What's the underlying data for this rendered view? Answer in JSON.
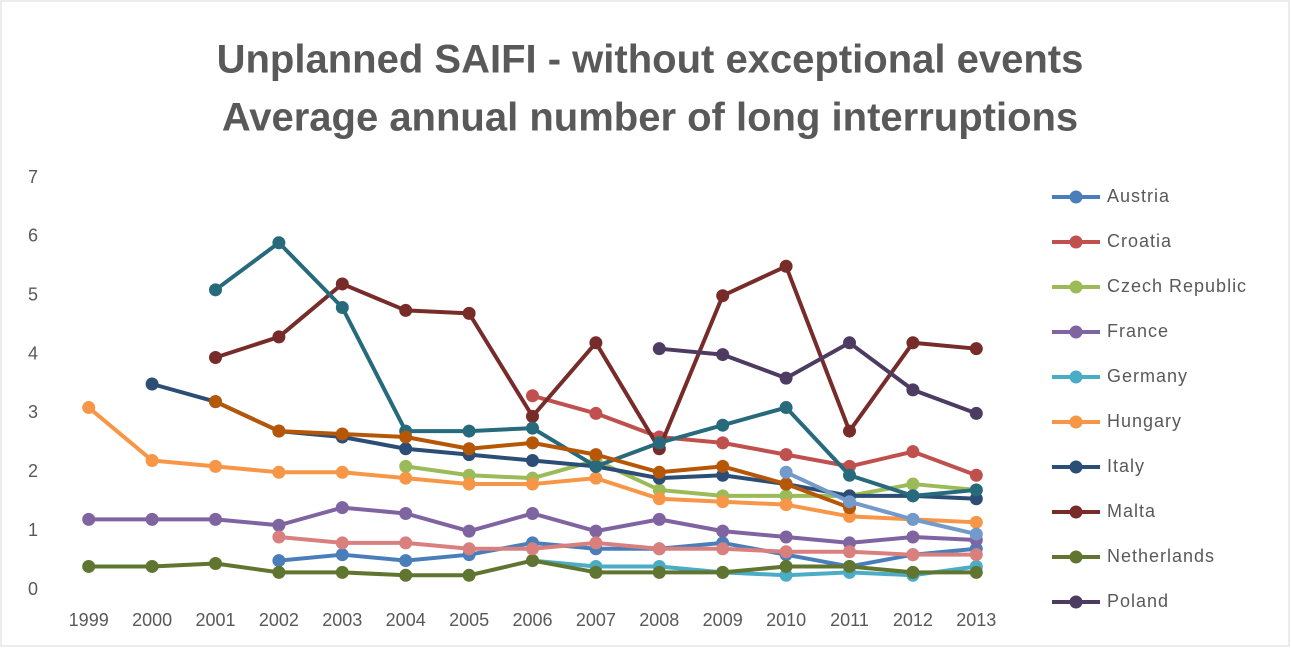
{
  "chart_data": {
    "type": "line",
    "title": "Unplanned SAIFI - without exceptional events",
    "subtitle": "Average annual number of long interruptions",
    "categories": [
      "1999",
      "2000",
      "2001",
      "2002",
      "2003",
      "2004",
      "2005",
      "2006",
      "2007",
      "2008",
      "2009",
      "2010",
      "2011",
      "2012",
      "2013"
    ],
    "ylim": [
      0,
      7
    ],
    "yticks": [
      0,
      1,
      2,
      3,
      4,
      5,
      6,
      7
    ],
    "grid": false,
    "legend": "right",
    "series": [
      {
        "name": "Austria",
        "color": "#4a7ebb",
        "values": [
          null,
          null,
          null,
          0.5,
          0.6,
          0.5,
          0.6,
          0.8,
          0.7,
          0.7,
          0.8,
          0.6,
          0.4,
          0.6,
          0.7
        ]
      },
      {
        "name": "Croatia",
        "color": "#c0504d",
        "values": [
          null,
          null,
          null,
          null,
          null,
          null,
          null,
          3.3,
          3.0,
          2.6,
          2.5,
          2.3,
          2.1,
          2.35,
          1.95
        ]
      },
      {
        "name": "Czech Republic",
        "color": "#9bbb59",
        "values": [
          null,
          null,
          null,
          null,
          null,
          2.1,
          1.95,
          1.9,
          2.2,
          1.7,
          1.6,
          1.6,
          1.6,
          1.8,
          1.7
        ]
      },
      {
        "name": "France",
        "color": "#8064a2",
        "values": [
          1.2,
          1.2,
          1.2,
          1.1,
          1.4,
          1.3,
          1.0,
          1.3,
          1.0,
          1.2,
          1.0,
          0.9,
          0.8,
          0.9,
          0.85
        ]
      },
      {
        "name": "Germany",
        "color": "#4bacc6",
        "values": [
          null,
          null,
          null,
          null,
          null,
          null,
          null,
          0.5,
          0.4,
          0.4,
          0.3,
          0.25,
          0.3,
          0.25,
          0.4
        ]
      },
      {
        "name": "Hungary",
        "color": "#f79646",
        "values": [
          3.1,
          2.2,
          2.1,
          2.0,
          2.0,
          1.9,
          1.8,
          1.8,
          1.9,
          1.55,
          1.5,
          1.45,
          1.25,
          1.2,
          1.15
        ]
      },
      {
        "name": "Italy",
        "color": "#2c4d75",
        "values": [
          null,
          3.5,
          3.2,
          2.7,
          2.6,
          2.4,
          2.3,
          2.2,
          2.1,
          1.9,
          1.95,
          1.8,
          1.6,
          1.6,
          1.55
        ]
      },
      {
        "name": "Malta",
        "color": "#772c2a",
        "values": [
          null,
          null,
          3.95,
          4.3,
          5.2,
          4.75,
          4.7,
          2.95,
          4.2,
          2.4,
          5.0,
          5.5,
          2.7,
          4.2,
          4.1
        ]
      },
      {
        "name": "Netherlands",
        "color": "#5f7530",
        "values": [
          0.4,
          0.4,
          0.45,
          0.3,
          0.3,
          0.25,
          0.25,
          0.5,
          0.3,
          0.3,
          0.3,
          0.4,
          0.4,
          0.3,
          0.3
        ]
      },
      {
        "name": "Poland",
        "color": "#4d3b62",
        "values": [
          null,
          null,
          null,
          null,
          null,
          null,
          null,
          null,
          null,
          4.1,
          4.0,
          3.6,
          4.2,
          3.4,
          3.0
        ]
      },
      {
        "color": "#276a7c",
        "values": [
          null,
          null,
          5.1,
          5.9,
          4.8,
          2.7,
          2.7,
          2.75,
          2.1,
          2.5,
          2.8,
          3.1,
          1.95,
          1.6,
          1.7
        ]
      },
      {
        "color": "#b65708",
        "values": [
          null,
          null,
          3.2,
          2.7,
          2.65,
          2.6,
          2.4,
          2.5,
          2.3,
          2.0,
          2.1,
          1.8,
          1.4,
          null,
          null
        ]
      },
      {
        "color": "#729aca",
        "values": [
          null,
          null,
          null,
          null,
          null,
          null,
          null,
          null,
          null,
          null,
          null,
          2.0,
          1.5,
          1.2,
          0.95
        ]
      },
      {
        "color": "#d9807e",
        "values": [
          null,
          null,
          null,
          0.9,
          0.8,
          0.8,
          0.7,
          0.7,
          0.8,
          0.7,
          0.7,
          0.65,
          0.65,
          0.6,
          0.6
        ]
      }
    ]
  }
}
